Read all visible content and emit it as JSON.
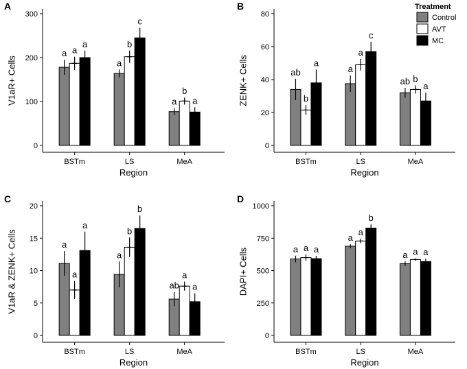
{
  "legend": {
    "title": "Treatment",
    "entries": [
      {
        "label": "Control",
        "color": "#808080"
      },
      {
        "label": "AVT",
        "color": "#ffffff"
      },
      {
        "label": "MC",
        "color": "#000000"
      }
    ]
  },
  "chart_data": [
    {
      "panel": "A",
      "type": "bar",
      "ylabel": "V1aR+ Cells",
      "xlabel": "Region",
      "categories": [
        "BSTm",
        "LS",
        "MeA"
      ],
      "ylim": [
        0,
        300
      ],
      "yticks": [
        0,
        100,
        200,
        300
      ],
      "series": [
        {
          "name": "Control",
          "values": [
            178,
            164,
            77
          ],
          "errors": [
            17,
            9,
            8
          ],
          "letters": [
            "a",
            "a",
            "a"
          ]
        },
        {
          "name": "AVT",
          "values": [
            187,
            202,
            101
          ],
          "errors": [
            15,
            14,
            8
          ],
          "letters": [
            "a",
            "b",
            "b"
          ]
        },
        {
          "name": "MC",
          "values": [
            200,
            245,
            76
          ],
          "errors": [
            16,
            23,
            11
          ],
          "letters": [
            "a",
            "c",
            "a"
          ]
        }
      ]
    },
    {
      "panel": "B",
      "type": "bar",
      "ylabel": "ZENK+ Cells",
      "xlabel": "Region",
      "categories": [
        "BSTm",
        "LS",
        "MeA"
      ],
      "ylim": [
        0,
        80
      ],
      "yticks": [
        0,
        20,
        40,
        60,
        80
      ],
      "series": [
        {
          "name": "Control",
          "values": [
            34,
            37.5,
            32
          ],
          "errors": [
            6.5,
            5,
            3
          ],
          "letters": [
            "ab",
            "a",
            "ab"
          ]
        },
        {
          "name": "AVT",
          "values": [
            21.5,
            49,
            34
          ],
          "errors": [
            3,
            3.5,
            2.5
          ],
          "letters": [
            "b",
            "a",
            "b"
          ]
        },
        {
          "name": "MC",
          "values": [
            38,
            57,
            27
          ],
          "errors": [
            8,
            6,
            5
          ],
          "letters": [
            "a",
            "c",
            "a"
          ]
        }
      ]
    },
    {
      "panel": "C",
      "type": "bar",
      "ylabel": "V1aR & ZENK+ Cells",
      "xlabel": "Region",
      "categories": [
        "BSTm",
        "LS",
        "MeA"
      ],
      "ylim": [
        0,
        20
      ],
      "yticks": [
        0,
        5,
        10,
        15,
        20
      ],
      "series": [
        {
          "name": "Control",
          "values": [
            11.1,
            9.4,
            5.6
          ],
          "errors": [
            1.9,
            2,
            1.1
          ],
          "letters": [
            "a",
            "a",
            "ab"
          ]
        },
        {
          "name": "AVT",
          "values": [
            7,
            13.6,
            7.6
          ],
          "errors": [
            1.4,
            1.5,
            0.7
          ],
          "letters": [
            "a",
            "b",
            "a"
          ]
        },
        {
          "name": "MC",
          "values": [
            13.1,
            16.5,
            5.2
          ],
          "errors": [
            2.9,
            2,
            1.3
          ],
          "letters": [
            "a",
            "b",
            "a"
          ]
        }
      ]
    },
    {
      "panel": "D",
      "type": "bar",
      "ylabel": "DAPI+ Cells",
      "xlabel": "Region",
      "categories": [
        "BSTm",
        "LS",
        "MeA"
      ],
      "ylim": [
        0,
        1000
      ],
      "yticks": [
        0,
        250,
        500,
        750,
        1000
      ],
      "series": [
        {
          "name": "Control",
          "values": [
            590,
            688,
            553
          ],
          "errors": [
            25,
            15,
            18
          ],
          "letters": [
            "a",
            "a",
            "a"
          ]
        },
        {
          "name": "AVT",
          "values": [
            600,
            728,
            585
          ],
          "errors": [
            25,
            18,
            10
          ],
          "letters": [
            "a",
            "a",
            "a"
          ]
        },
        {
          "name": "MC",
          "values": [
            592,
            828,
            570
          ],
          "errors": [
            22,
            28,
            22
          ],
          "letters": [
            "a",
            "b",
            "a"
          ]
        }
      ]
    }
  ]
}
